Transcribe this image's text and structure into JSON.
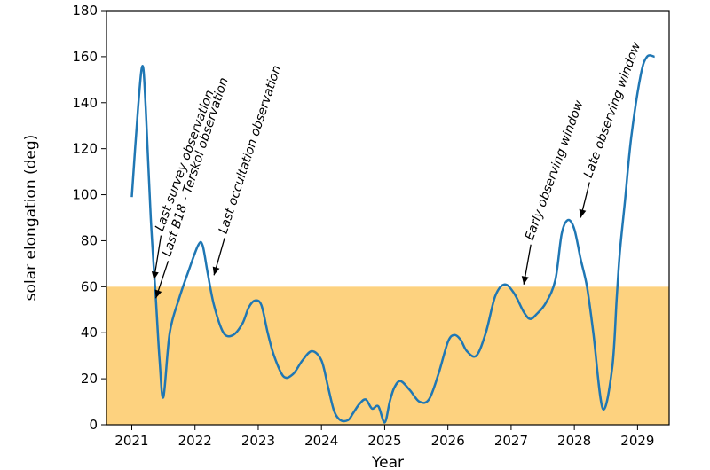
{
  "chart_data": {
    "type": "line",
    "xlabel": "Year",
    "ylabel": "solar elongation (deg)",
    "xlim": [
      2020.6,
      2029.5
    ],
    "ylim": [
      0,
      180
    ],
    "x_ticks": [
      "2021",
      "2022",
      "2023",
      "2024",
      "2025",
      "2026",
      "2027",
      "2028",
      "2029"
    ],
    "y_ticks": [
      "0",
      "20",
      "40",
      "60",
      "80",
      "100",
      "120",
      "140",
      "160",
      "180"
    ],
    "grid": false,
    "shaded_band": {
      "y_from": 0,
      "y_to": 60,
      "color": "#fdd27f"
    },
    "line_color": "#1f77b4",
    "series": [
      {
        "x": [
          2021.0,
          2021.1,
          2021.17,
          2021.22,
          2021.3,
          2021.38,
          2021.44,
          2021.5,
          2021.6,
          2021.75,
          2021.9,
          2022.05,
          2022.12,
          2022.2,
          2022.3,
          2022.45,
          2022.6,
          2022.75,
          2022.85,
          2022.95,
          2023.05,
          2023.15,
          2023.25,
          2023.4,
          2023.55,
          2023.7,
          2023.85,
          2024.0,
          2024.1,
          2024.2,
          2024.3,
          2024.42,
          2024.5,
          2024.6,
          2024.7,
          2024.8,
          2024.9,
          2025.0,
          2025.08,
          2025.15,
          2025.25,
          2025.4,
          2025.55,
          2025.7,
          2025.85,
          2026.0,
          2026.1,
          2026.2,
          2026.3,
          2026.45,
          2026.6,
          2026.75,
          2026.9,
          2027.05,
          2027.2,
          2027.3,
          2027.4,
          2027.55,
          2027.7,
          2027.8,
          2027.9,
          2028.0,
          2028.1,
          2028.2,
          2028.3,
          2028.45,
          2028.6,
          2028.67,
          2028.72,
          2028.8,
          2028.9,
          2029.05,
          2029.15,
          2029.27
        ],
        "y": [
          99,
          138,
          156,
          138,
          90,
          55,
          28,
          12,
          40,
          55,
          67,
          78,
          78,
          66,
          52,
          40,
          39,
          44,
          51,
          54,
          52,
          40,
          30,
          21,
          22,
          28,
          32,
          28,
          17,
          6,
          2,
          2,
          5,
          9,
          11,
          7,
          8,
          1,
          10,
          16,
          19,
          15,
          10,
          11,
          22,
          36,
          39,
          37,
          32,
          30,
          40,
          56,
          61,
          57,
          49,
          46,
          48,
          53,
          63,
          83,
          89,
          85,
          72,
          60,
          40,
          7,
          25,
          55,
          75,
          97,
          125,
          152,
          160,
          160
        ]
      }
    ],
    "annotations": [
      {
        "text": "Last survey observation",
        "x": 2021.35,
        "y": 63
      },
      {
        "text": "Last B18 - Terskol observation",
        "x": 2021.38,
        "y": 55
      },
      {
        "text": "Last occultation observation",
        "x": 2022.3,
        "y": 65
      },
      {
        "text": "Early observing window",
        "x": 2027.2,
        "y": 61
      },
      {
        "text": "Late observing window",
        "x": 2028.1,
        "y": 90
      }
    ]
  }
}
